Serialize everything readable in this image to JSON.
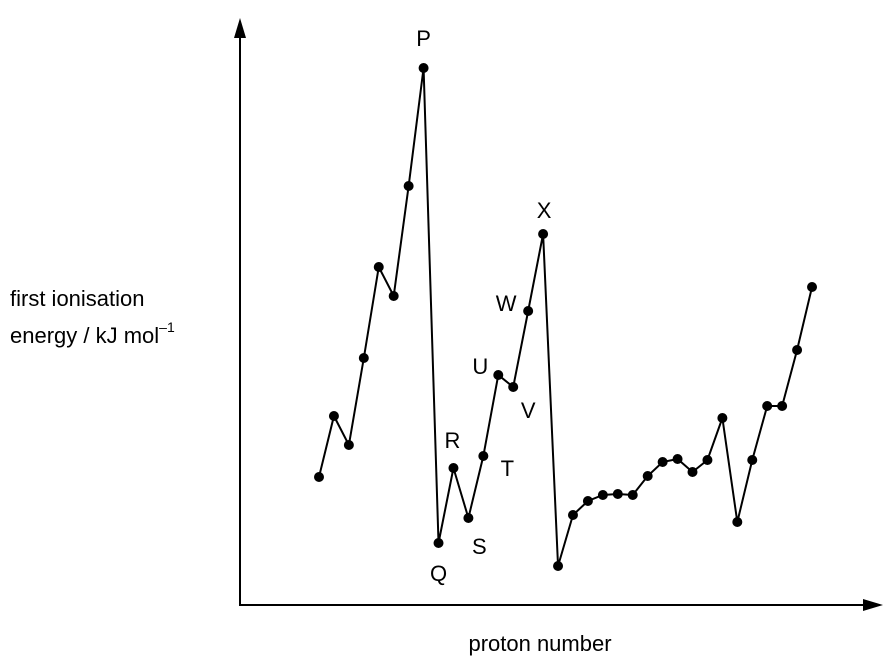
{
  "chart_data": {
    "type": "line",
    "x_label": "proton number",
    "y_label": [
      "first ionisation",
      "energy / kJ mol",
      "–1"
    ],
    "categories": [
      null,
      null,
      null,
      null,
      null,
      null,
      null,
      null,
      null,
      null,
      null,
      null,
      null,
      null,
      null,
      null,
      null,
      null,
      null,
      null,
      null,
      null,
      null,
      null,
      null,
      null,
      null,
      null,
      null,
      null,
      null,
      null,
      null,
      null
    ],
    "values": [
      128,
      189,
      160,
      247,
      338,
      309,
      419,
      537,
      62,
      137,
      87,
      149,
      230,
      218,
      294,
      371,
      39,
      90,
      104,
      110,
      111,
      110,
      129,
      143,
      146,
      133,
      145,
      187,
      83,
      145,
      199,
      199,
      255,
      318
    ],
    "ylim": [
      0,
      585
    ],
    "color": "#000000",
    "annotations": [
      {
        "text": "P",
        "index": 7
      },
      {
        "text": "Q",
        "index": 8
      },
      {
        "text": "R",
        "index": 9
      },
      {
        "text": "S",
        "index": 10
      },
      {
        "text": "T",
        "index": 11
      },
      {
        "text": "U",
        "index": 12
      },
      {
        "text": "V",
        "index": 13
      },
      {
        "text": "W",
        "index": 14
      },
      {
        "text": "X",
        "index": 15
      }
    ]
  }
}
